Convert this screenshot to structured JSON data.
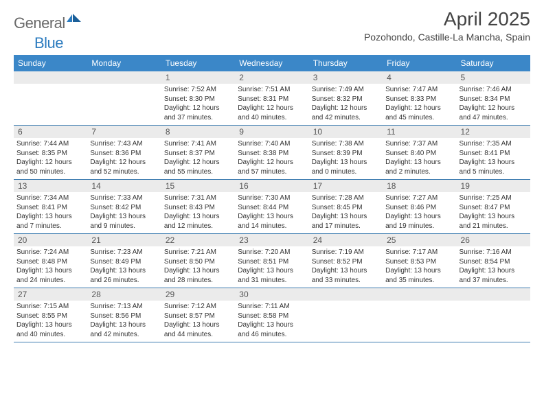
{
  "logo": {
    "text1": "General",
    "text2": "Blue"
  },
  "title": "April 2025",
  "location": "Pozohondo, Castille-La Mancha, Spain",
  "colors": {
    "header_bg": "#3b87c8",
    "header_text": "#ffffff",
    "num_bg": "#ebebeb",
    "rule": "#3b7bb0",
    "logo_gray": "#6a6a6a",
    "logo_blue": "#2b7bbf"
  },
  "day_names": [
    "Sunday",
    "Monday",
    "Tuesday",
    "Wednesday",
    "Thursday",
    "Friday",
    "Saturday"
  ],
  "weeks": [
    [
      null,
      null,
      {
        "n": "1",
        "sr": "7:52 AM",
        "ss": "8:30 PM",
        "dl": "12 hours and 37 minutes."
      },
      {
        "n": "2",
        "sr": "7:51 AM",
        "ss": "8:31 PM",
        "dl": "12 hours and 40 minutes."
      },
      {
        "n": "3",
        "sr": "7:49 AM",
        "ss": "8:32 PM",
        "dl": "12 hours and 42 minutes."
      },
      {
        "n": "4",
        "sr": "7:47 AM",
        "ss": "8:33 PM",
        "dl": "12 hours and 45 minutes."
      },
      {
        "n": "5",
        "sr": "7:46 AM",
        "ss": "8:34 PM",
        "dl": "12 hours and 47 minutes."
      }
    ],
    [
      {
        "n": "6",
        "sr": "7:44 AM",
        "ss": "8:35 PM",
        "dl": "12 hours and 50 minutes."
      },
      {
        "n": "7",
        "sr": "7:43 AM",
        "ss": "8:36 PM",
        "dl": "12 hours and 52 minutes."
      },
      {
        "n": "8",
        "sr": "7:41 AM",
        "ss": "8:37 PM",
        "dl": "12 hours and 55 minutes."
      },
      {
        "n": "9",
        "sr": "7:40 AM",
        "ss": "8:38 PM",
        "dl": "12 hours and 57 minutes."
      },
      {
        "n": "10",
        "sr": "7:38 AM",
        "ss": "8:39 PM",
        "dl": "13 hours and 0 minutes."
      },
      {
        "n": "11",
        "sr": "7:37 AM",
        "ss": "8:40 PM",
        "dl": "13 hours and 2 minutes."
      },
      {
        "n": "12",
        "sr": "7:35 AM",
        "ss": "8:41 PM",
        "dl": "13 hours and 5 minutes."
      }
    ],
    [
      {
        "n": "13",
        "sr": "7:34 AM",
        "ss": "8:41 PM",
        "dl": "13 hours and 7 minutes."
      },
      {
        "n": "14",
        "sr": "7:33 AM",
        "ss": "8:42 PM",
        "dl": "13 hours and 9 minutes."
      },
      {
        "n": "15",
        "sr": "7:31 AM",
        "ss": "8:43 PM",
        "dl": "13 hours and 12 minutes."
      },
      {
        "n": "16",
        "sr": "7:30 AM",
        "ss": "8:44 PM",
        "dl": "13 hours and 14 minutes."
      },
      {
        "n": "17",
        "sr": "7:28 AM",
        "ss": "8:45 PM",
        "dl": "13 hours and 17 minutes."
      },
      {
        "n": "18",
        "sr": "7:27 AM",
        "ss": "8:46 PM",
        "dl": "13 hours and 19 minutes."
      },
      {
        "n": "19",
        "sr": "7:25 AM",
        "ss": "8:47 PM",
        "dl": "13 hours and 21 minutes."
      }
    ],
    [
      {
        "n": "20",
        "sr": "7:24 AM",
        "ss": "8:48 PM",
        "dl": "13 hours and 24 minutes."
      },
      {
        "n": "21",
        "sr": "7:23 AM",
        "ss": "8:49 PM",
        "dl": "13 hours and 26 minutes."
      },
      {
        "n": "22",
        "sr": "7:21 AM",
        "ss": "8:50 PM",
        "dl": "13 hours and 28 minutes."
      },
      {
        "n": "23",
        "sr": "7:20 AM",
        "ss": "8:51 PM",
        "dl": "13 hours and 31 minutes."
      },
      {
        "n": "24",
        "sr": "7:19 AM",
        "ss": "8:52 PM",
        "dl": "13 hours and 33 minutes."
      },
      {
        "n": "25",
        "sr": "7:17 AM",
        "ss": "8:53 PM",
        "dl": "13 hours and 35 minutes."
      },
      {
        "n": "26",
        "sr": "7:16 AM",
        "ss": "8:54 PM",
        "dl": "13 hours and 37 minutes."
      }
    ],
    [
      {
        "n": "27",
        "sr": "7:15 AM",
        "ss": "8:55 PM",
        "dl": "13 hours and 40 minutes."
      },
      {
        "n": "28",
        "sr": "7:13 AM",
        "ss": "8:56 PM",
        "dl": "13 hours and 42 minutes."
      },
      {
        "n": "29",
        "sr": "7:12 AM",
        "ss": "8:57 PM",
        "dl": "13 hours and 44 minutes."
      },
      {
        "n": "30",
        "sr": "7:11 AM",
        "ss": "8:58 PM",
        "dl": "13 hours and 46 minutes."
      },
      null,
      null,
      null
    ]
  ],
  "labels": {
    "sunrise": "Sunrise:",
    "sunset": "Sunset:",
    "daylight": "Daylight:"
  }
}
